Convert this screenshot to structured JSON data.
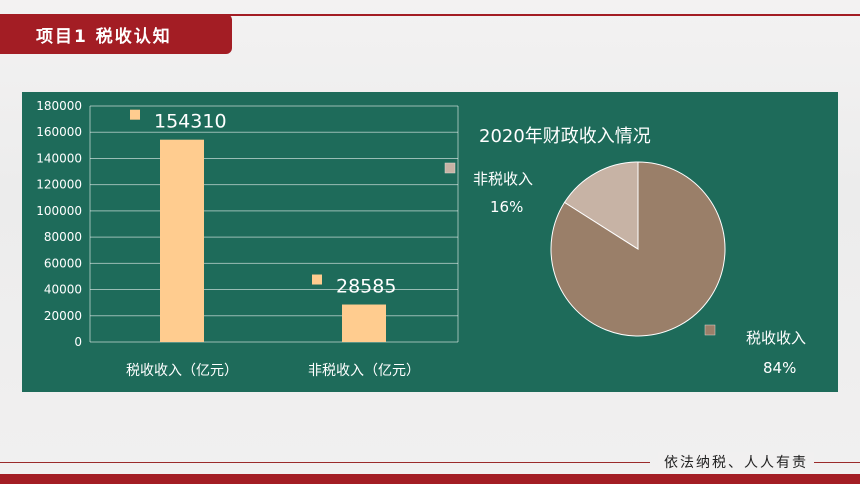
{
  "header": {
    "title": "项目1  税收认知"
  },
  "footer": {
    "slogan": "依法纳税、人人有责"
  },
  "colors": {
    "accent": "#a31d24",
    "panel": "#1e6b5a",
    "bar": "#ffcc8f",
    "pie_tax": "#9a7f69",
    "pie_nontax": "#c7b3a5"
  },
  "chart_data": [
    {
      "type": "bar",
      "categories": [
        "税收收入（亿元）",
        "非税收入（亿元）"
      ],
      "values": [
        154310,
        28585
      ],
      "data_labels": [
        "154310",
        "28585"
      ],
      "yticks": [
        "0",
        "20000",
        "40000",
        "60000",
        "80000",
        "100000",
        "120000",
        "140000",
        "160000",
        "180000"
      ],
      "ylim": [
        0,
        180000
      ],
      "grid": true
    },
    {
      "type": "pie",
      "title": "2020年财政收入情况",
      "slices": [
        {
          "label": "税收收入",
          "percent_label": "84%",
          "value": 84
        },
        {
          "label": "非税收入",
          "percent_label": "16%",
          "value": 16
        }
      ]
    }
  ]
}
